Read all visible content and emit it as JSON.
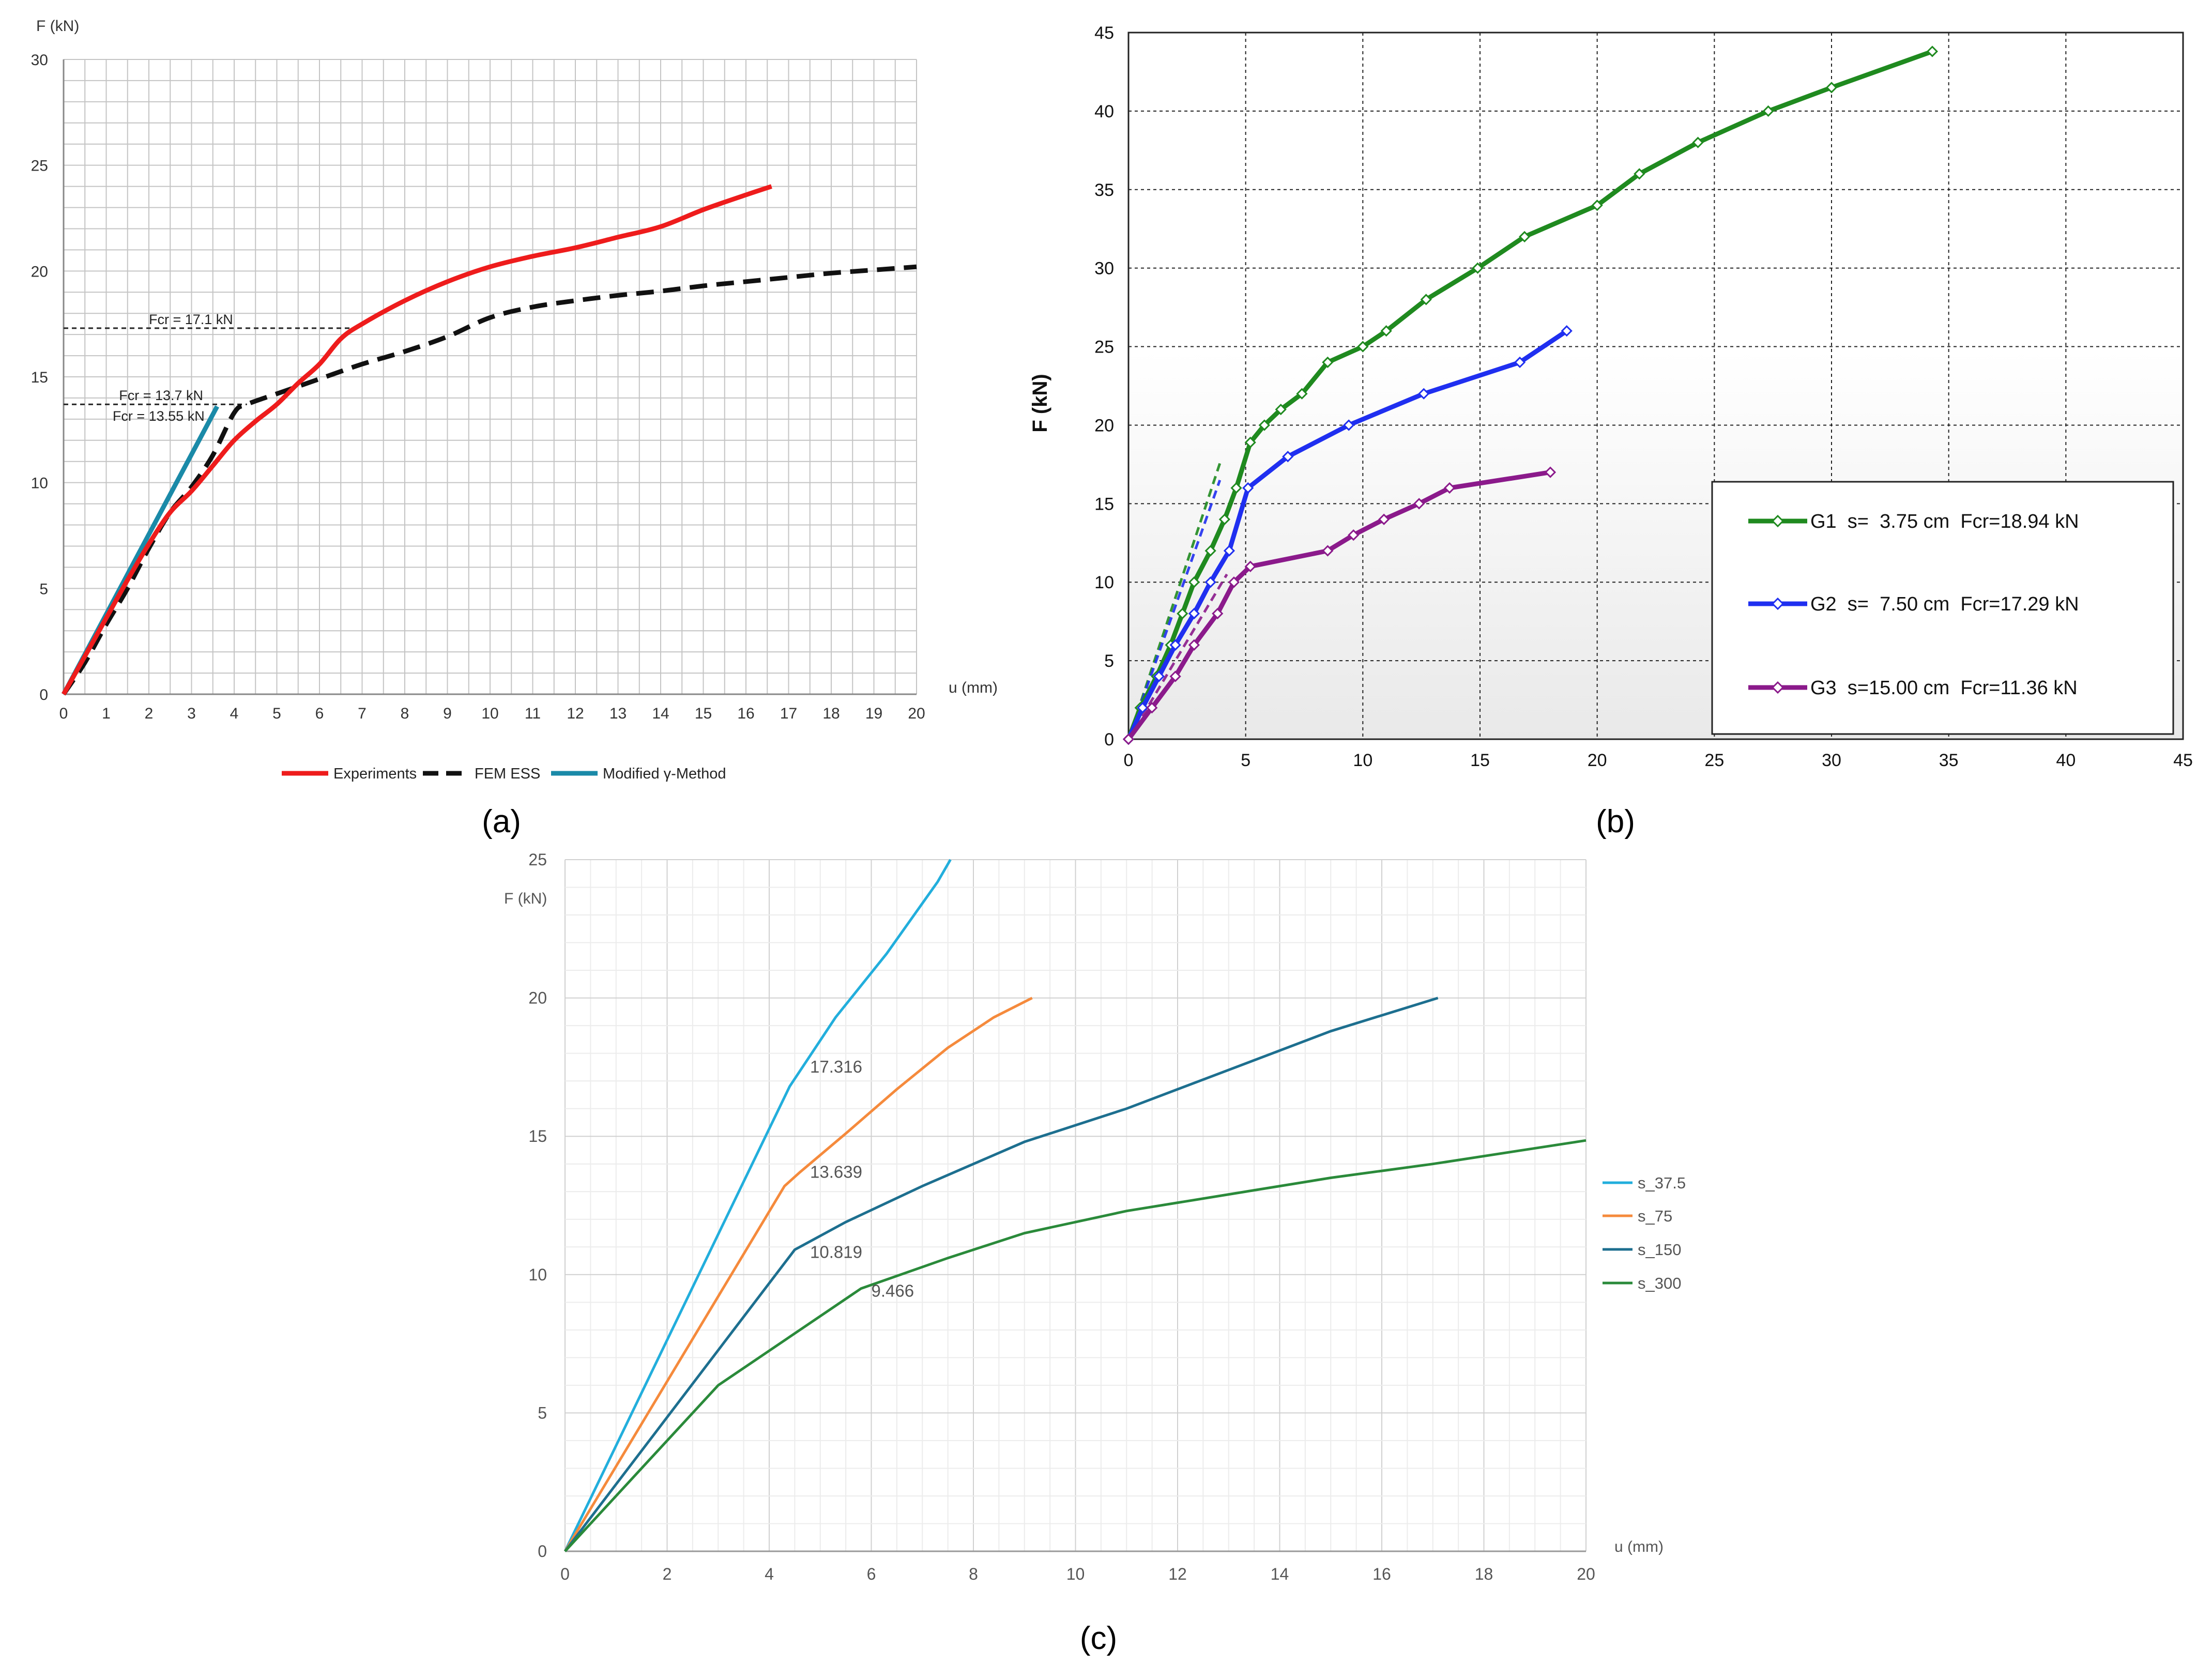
{
  "panel_labels": [
    "(a)",
    "(b)",
    "(c)"
  ],
  "colors": {
    "experiments": "#ee1c1c",
    "fem": "#111111",
    "modified": "#1a8aa8",
    "g1": "#1f8a1f",
    "g2": "#1f2ff0",
    "g3": "#8b1a8b",
    "s37": "#22aedc",
    "s75": "#f58a3c",
    "s150": "#1d6f8f",
    "s300": "#2a8a3a"
  },
  "chart_data": [
    {
      "id": "a",
      "type": "line",
      "ylabel": "F (kN)",
      "xlabel": "u (mm)",
      "xlim": [
        0,
        20
      ],
      "ylim": [
        0,
        30
      ],
      "xticks": [
        0,
        1,
        2,
        3,
        4,
        5,
        6,
        7,
        8,
        9,
        10,
        11,
        12,
        13,
        14,
        15,
        16,
        17,
        18,
        19,
        20
      ],
      "yticks": [
        0,
        5,
        10,
        15,
        20,
        25,
        30
      ],
      "series": [
        {
          "name": "Experiments",
          "style": "solid",
          "x": [
            0,
            0.5,
            1,
            1.5,
            2,
            2.5,
            3,
            3.5,
            4,
            4.5,
            5,
            5.5,
            6,
            6.5,
            7,
            8,
            9,
            10,
            11,
            12,
            13,
            14,
            15,
            16,
            16.6
          ],
          "y": [
            0,
            1.8,
            3.6,
            5.4,
            7.1,
            8.6,
            9.6,
            10.8,
            12.0,
            12.9,
            13.7,
            14.7,
            15.6,
            16.8,
            17.5,
            18.6,
            19.5,
            20.2,
            20.7,
            21.1,
            21.6,
            22.1,
            22.9,
            23.6,
            24.0
          ]
        },
        {
          "name": "FEM ESS",
          "style": "dashed",
          "x": [
            0,
            0.5,
            1,
            1.5,
            2,
            2.5,
            3,
            3.5,
            4,
            4.3,
            5,
            6,
            7,
            8,
            9,
            10,
            11,
            12,
            13,
            14,
            15,
            16,
            17,
            18,
            19,
            20
          ],
          "y": [
            0,
            1.5,
            3.3,
            5.0,
            6.9,
            8.6,
            9.8,
            11.3,
            13.3,
            13.7,
            14.2,
            14.9,
            15.6,
            16.2,
            16.9,
            17.8,
            18.3,
            18.6,
            18.85,
            19.05,
            19.3,
            19.5,
            19.7,
            19.9,
            20.05,
            20.2
          ]
        },
        {
          "name": "Modified γ-Method",
          "style": "solid",
          "x": [
            0,
            3.6
          ],
          "y": [
            0,
            13.6
          ]
        }
      ],
      "annotations": [
        {
          "text": "Fcr = 17.1 kN",
          "y": 17.3
        },
        {
          "text": "Fcr = 13.7 kN",
          "y": 13.7
        },
        {
          "text": "Fcr = 13.55 kN"
        }
      ],
      "legend": [
        "Experiments",
        "FEM ESS",
        "Modified γ-Method"
      ]
    },
    {
      "id": "b",
      "type": "line",
      "ylabel": "F (kN)",
      "xlabel": "",
      "xlim": [
        0,
        45
      ],
      "ylim": [
        0,
        45
      ],
      "xticks": [
        0,
        5,
        10,
        15,
        20,
        25,
        30,
        35,
        40,
        45
      ],
      "yticks": [
        0,
        5,
        10,
        15,
        20,
        25,
        30,
        35,
        40,
        45
      ],
      "series": [
        {
          "name": "G1  s=  3.75 cm  Fcr=18.94 kN",
          "x": [
            0,
            0.5,
            1.2,
            1.8,
            2.3,
            2.8,
            3.5,
            4.1,
            4.6,
            5.2,
            5.8,
            6.5,
            7.4,
            8.5,
            10,
            11,
            12.7,
            14.9,
            16.9,
            20,
            21.8,
            24.3,
            27.3,
            30,
            34.3
          ],
          "y": [
            0,
            2,
            4,
            6,
            8,
            10,
            12,
            14,
            16,
            18.9,
            20,
            21,
            22,
            24,
            25,
            26,
            28,
            30,
            32,
            34,
            36,
            38,
            40,
            41.5,
            43.8
          ]
        },
        {
          "name": "G2  s=  7.50 cm  Fcr=17.29 kN",
          "x": [
            0,
            0.6,
            1.3,
            2,
            2.8,
            3.5,
            4.3,
            5.1,
            6.8,
            9.4,
            12.6,
            16.7,
            18.7
          ],
          "y": [
            0,
            2,
            4,
            6,
            8,
            10,
            12,
            16,
            18,
            20,
            22,
            24,
            26
          ]
        },
        {
          "name": "G3  s=15.00 cm  Fcr=11.36 kN",
          "x": [
            0,
            1,
            2,
            2.8,
            3.8,
            4.5,
            5.2,
            8.5,
            9.6,
            10.9,
            12.4,
            13.7,
            18
          ],
          "y": [
            0,
            2,
            4,
            6,
            8,
            10,
            11,
            12,
            13,
            14,
            15,
            16,
            17
          ]
        }
      ],
      "dashed_fits": [
        {
          "series": "G1",
          "x": [
            0,
            3.95
          ],
          "y": [
            0,
            17.8
          ]
        },
        {
          "series": "G2",
          "x": [
            0,
            3.9
          ],
          "y": [
            0,
            16.5
          ]
        },
        {
          "series": "G3",
          "x": [
            0,
            4.2
          ],
          "y": [
            0,
            10.5
          ]
        }
      ],
      "legend": [
        "G1  s=  3.75 cm  Fcr=18.94 kN",
        "G2  s=  7.50 cm  Fcr=17.29 kN",
        "G3  s=15.00 cm  Fcr=11.36 kN"
      ]
    },
    {
      "id": "c",
      "type": "line",
      "ylabel": "F (kN)",
      "xlabel": "u (mm)",
      "xlim": [
        0,
        20
      ],
      "ylim": [
        0,
        25
      ],
      "xticks": [
        0,
        2,
        4,
        6,
        8,
        10,
        12,
        14,
        16,
        18,
        20
      ],
      "yticks": [
        0,
        5,
        10,
        15,
        20,
        25
      ],
      "series": [
        {
          "name": "s_37.5",
          "x": [
            0,
            4.4,
            5.3,
            6.3,
            7.3,
            7.55
          ],
          "y": [
            0,
            16.8,
            19.3,
            21.6,
            24.2,
            25
          ]
        },
        {
          "name": "s_75",
          "x": [
            0,
            4.3,
            4.6,
            5.5,
            6.5,
            7.5,
            8.4,
            9.15
          ],
          "y": [
            0,
            13.2,
            13.7,
            15.1,
            16.7,
            18.2,
            19.3,
            20
          ]
        },
        {
          "name": "s_150",
          "x": [
            0,
            4.5,
            5.5,
            7,
            9,
            11,
            13,
            15,
            17.1
          ],
          "y": [
            0,
            10.9,
            11.9,
            13.2,
            14.8,
            16.0,
            17.4,
            18.8,
            20
          ]
        },
        {
          "name": "s_300",
          "x": [
            0,
            3,
            5.8,
            7.5,
            9,
            11,
            13,
            15,
            17,
            20
          ],
          "y": [
            0,
            6.0,
            9.5,
            10.6,
            11.5,
            12.3,
            12.9,
            13.5,
            14.0,
            14.85
          ]
        }
      ],
      "annotations": [
        {
          "text": "17.316",
          "x": 4.8,
          "y": 17.3
        },
        {
          "text": "13.639",
          "x": 4.8,
          "y": 13.5
        },
        {
          "text": "10.819",
          "x": 4.8,
          "y": 10.6
        },
        {
          "text": "9.466",
          "x": 6.0,
          "y": 9.2
        }
      ],
      "legend": [
        "s_37.5",
        "s_75",
        "s_150",
        "s_300"
      ]
    }
  ]
}
